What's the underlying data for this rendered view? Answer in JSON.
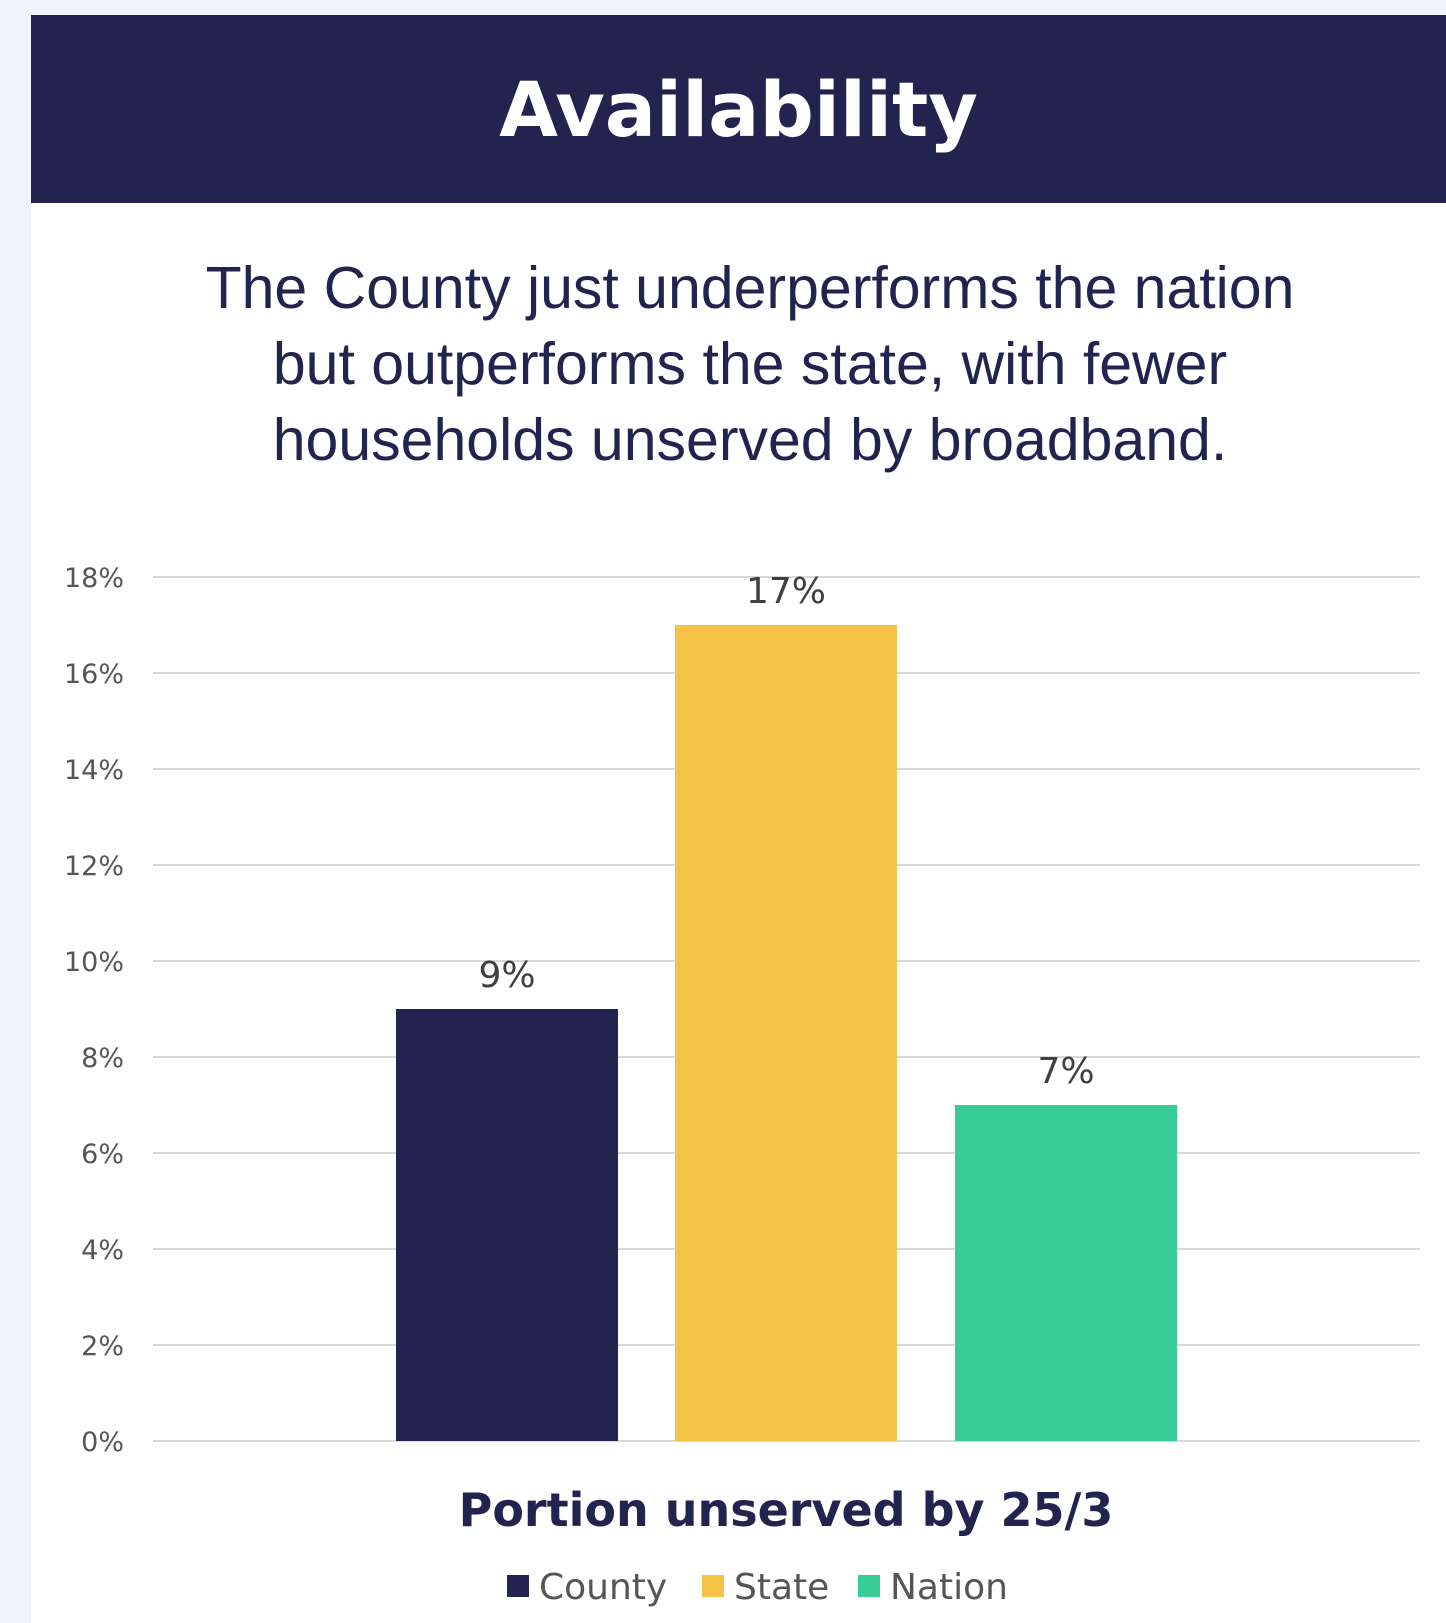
{
  "header": {
    "title": "Availability"
  },
  "subtitle": {
    "lines": [
      "The County just underperforms the nation",
      "but outperforms the state, with fewer",
      "households unserved by broadband."
    ]
  },
  "colors": {
    "header_bg": "#23234f",
    "county": "#23234f",
    "state": "#f4c345",
    "nation": "#35cc96",
    "gridline": "#d9d9d9"
  },
  "chart_data": {
    "type": "bar",
    "title": "",
    "xlabel": "Portion unserved by 25/3",
    "ylabel": "",
    "ylim": [
      0,
      18
    ],
    "y_ticks": [
      0,
      2,
      4,
      6,
      8,
      10,
      12,
      14,
      16,
      18
    ],
    "y_tick_labels": [
      "0%",
      "2%",
      "4%",
      "6%",
      "8%",
      "10%",
      "12%",
      "14%",
      "16%",
      "18%"
    ],
    "grid": true,
    "legend_position": "bottom",
    "categories": [
      "Portion unserved by 25/3"
    ],
    "series": [
      {
        "name": "County",
        "values": [
          9
        ],
        "label": "9%",
        "color": "#23234f"
      },
      {
        "name": "State",
        "values": [
          17
        ],
        "label": "17%",
        "color": "#f4c345"
      },
      {
        "name": "Nation",
        "values": [
          7
        ],
        "label": "7%",
        "color": "#35cc96"
      }
    ]
  }
}
